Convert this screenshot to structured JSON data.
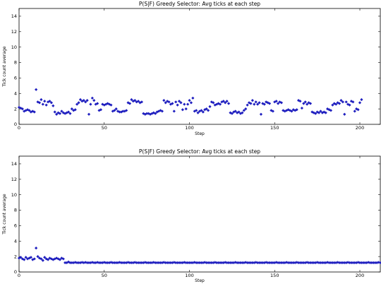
{
  "chart_data": [
    {
      "type": "scatter",
      "title": "P(S|F) Greedy Selector: Avg ticks at each step",
      "xlabel": "Step",
      "ylabel": "Tick count average",
      "xlim": [
        0,
        212
      ],
      "ylim": [
        0,
        15
      ],
      "xticks": [
        "0",
        "50",
        "100",
        "150",
        "200"
      ],
      "yticks": [
        "0",
        "2",
        "4",
        "6",
        "8",
        "10",
        "12",
        "14"
      ],
      "marker_color": "#1f1fbf",
      "grid": false,
      "x_start": 0,
      "y": [
        2.2,
        2.1,
        2.0,
        1.7,
        1.8,
        1.9,
        1.8,
        1.6,
        1.7,
        1.6,
        4.5,
        2.9,
        2.8,
        3.2,
        2.6,
        3.0,
        2.5,
        2.9,
        3.0,
        2.8,
        2.4,
        1.6,
        1.3,
        1.5,
        1.4,
        1.7,
        1.5,
        1.4,
        1.5,
        1.6,
        1.4,
        2.0,
        1.8,
        1.9,
        2.6,
        2.8,
        3.2,
        3.0,
        3.1,
        2.9,
        3.1,
        1.3,
        2.6,
        3.4,
        3.1,
        2.6,
        2.7,
        1.8,
        1.9,
        2.6,
        2.5,
        2.6,
        2.7,
        2.6,
        2.5,
        1.7,
        1.8,
        2.0,
        1.7,
        1.6,
        1.6,
        1.7,
        1.7,
        1.8,
        2.8,
        2.7,
        3.2,
        3.0,
        3.1,
        2.9,
        3.0,
        2.8,
        2.9,
        1.4,
        1.3,
        1.4,
        1.4,
        1.3,
        1.4,
        1.5,
        1.4,
        1.6,
        1.7,
        1.8,
        1.7,
        3.1,
        2.8,
        3.0,
        2.9,
        2.6,
        2.7,
        1.7,
        2.9,
        2.5,
        3.0,
        2.8,
        1.9,
        2.6,
        2.0,
        2.6,
        3.1,
        2.8,
        3.4,
        1.7,
        1.8,
        1.5,
        1.7,
        1.8,
        1.6,
        1.9,
        2.0,
        1.8,
        2.3,
        2.9,
        2.8,
        2.5,
        2.6,
        2.7,
        2.6,
        2.9,
        3.0,
        2.8,
        3.0,
        2.7,
        1.5,
        1.4,
        1.6,
        1.7,
        1.5,
        1.6,
        1.4,
        1.5,
        1.8,
        2.0,
        2.5,
        2.8,
        2.7,
        3.1,
        2.6,
        2.9,
        2.6,
        2.8,
        1.3,
        2.7,
        2.6,
        2.9,
        2.8,
        2.7,
        1.8,
        1.7,
        2.9,
        3.0,
        2.7,
        2.9,
        2.8,
        1.8,
        1.7,
        1.8,
        1.9,
        1.8,
        1.7,
        1.9,
        1.8,
        1.9,
        3.1,
        3.0,
        2.1,
        2.7,
        2.9,
        2.6,
        2.8,
        2.7,
        1.6,
        1.5,
        1.4,
        1.6,
        1.5,
        1.7,
        1.5,
        1.6,
        1.5,
        2.0,
        1.9,
        1.8,
        2.5,
        2.7,
        2.6,
        2.8,
        2.7,
        3.1,
        2.9,
        1.3,
        2.9,
        2.6,
        2.5,
        3.0,
        2.9,
        1.7,
        2.0,
        1.9,
        2.8,
        3.2
      ]
    },
    {
      "type": "scatter",
      "title": "P(S|F) Greedy Selector: Avg ticks at each step",
      "xlabel": "Step",
      "ylabel": "Tick count average",
      "xlim": [
        0,
        212
      ],
      "ylim": [
        0,
        15
      ],
      "xticks": [
        "0",
        "50",
        "100",
        "150",
        "200"
      ],
      "yticks": [
        "0",
        "2",
        "4",
        "6",
        "8",
        "10",
        "12",
        "14"
      ],
      "marker_color": "#1f1fbf",
      "grid": false,
      "x_start": 0,
      "y": [
        1.8,
        1.9,
        1.7,
        1.6,
        1.9,
        1.7,
        1.8,
        1.9,
        1.6,
        1.7,
        3.1,
        2.0,
        1.8,
        1.7,
        1.5,
        1.9,
        1.7,
        1.6,
        1.8,
        1.7,
        1.6,
        1.7,
        1.8,
        1.7,
        1.6,
        1.8,
        1.7,
        1.2,
        1.2,
        1.3,
        1.2,
        1.2,
        1.2,
        1.25,
        1.2,
        1.2,
        1.2,
        1.25,
        1.2,
        1.25,
        1.2,
        1.2,
        1.2,
        1.25,
        1.2,
        1.2,
        1.25,
        1.2,
        1.2,
        1.2,
        1.25,
        1.2,
        1.2,
        1.2,
        1.25,
        1.2,
        1.2,
        1.2,
        1.2,
        1.25,
        1.2,
        1.2,
        1.2,
        1.2,
        1.25,
        1.2,
        1.2,
        1.2,
        1.25,
        1.2,
        1.2,
        1.2,
        1.2,
        1.2,
        1.25,
        1.2,
        1.2,
        1.2,
        1.2,
        1.25,
        1.2,
        1.2,
        1.2,
        1.2,
        1.2,
        1.25,
        1.2,
        1.2,
        1.2,
        1.2,
        1.2,
        1.25,
        1.2,
        1.2,
        1.2,
        1.2,
        1.2,
        1.25,
        1.2,
        1.2,
        1.2,
        1.2,
        1.2,
        1.25,
        1.2,
        1.2,
        1.2,
        1.2,
        1.2,
        1.25,
        1.2,
        1.2,
        1.2,
        1.2,
        1.2,
        1.25,
        1.2,
        1.2,
        1.2,
        1.2,
        1.2,
        1.25,
        1.2,
        1.2,
        1.2,
        1.2,
        1.2,
        1.25,
        1.2,
        1.2,
        1.2,
        1.2,
        1.2,
        1.25,
        1.2,
        1.2,
        1.2,
        1.2,
        1.2,
        1.25,
        1.2,
        1.2,
        1.2,
        1.2,
        1.2,
        1.25,
        1.2,
        1.2,
        1.2,
        1.2,
        1.2,
        1.25,
        1.2,
        1.2,
        1.2,
        1.2,
        1.2,
        1.25,
        1.2,
        1.2,
        1.2,
        1.2,
        1.2,
        1.25,
        1.2,
        1.2,
        1.2,
        1.2,
        1.2,
        1.25,
        1.2,
        1.2,
        1.2,
        1.2,
        1.2,
        1.25,
        1.2,
        1.2,
        1.2,
        1.2,
        1.2,
        1.25,
        1.2,
        1.2,
        1.2,
        1.2,
        1.2,
        1.25,
        1.2,
        1.2,
        1.2,
        1.2,
        1.2,
        1.25,
        1.2,
        1.2,
        1.2,
        1.2,
        1.2,
        1.25,
        1.2,
        1.2,
        1.2,
        1.2,
        1.2,
        1.25,
        1.2,
        1.2,
        1.2,
        1.2,
        1.2,
        1.25,
        1.2,
        1.2,
        1.2,
        1.2
      ]
    }
  ]
}
